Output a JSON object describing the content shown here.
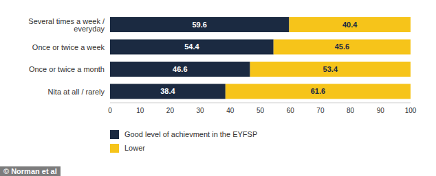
{
  "chart_data": {
    "type": "bar",
    "orientation": "horizontal",
    "stacked": true,
    "data_labels": true,
    "categories": [
      "Several times a week / everyday",
      "Once or twice a week",
      "Once or twice a month",
      "Nita at all / rarely"
    ],
    "series": [
      {
        "name": "Good level of achievment in the EYFSP",
        "color": "#1b2a41",
        "values": [
          59.6,
          54.4,
          46.6,
          38.4
        ]
      },
      {
        "name": "Lower",
        "color": "#f6c41a",
        "values": [
          40.4,
          45.6,
          53.4,
          61.6
        ]
      }
    ],
    "xlim": [
      0,
      100
    ],
    "xticks": [
      0,
      10,
      20,
      30,
      40,
      50,
      60,
      70,
      80,
      90,
      100
    ],
    "annotations": [
      "© Norman et al"
    ]
  }
}
